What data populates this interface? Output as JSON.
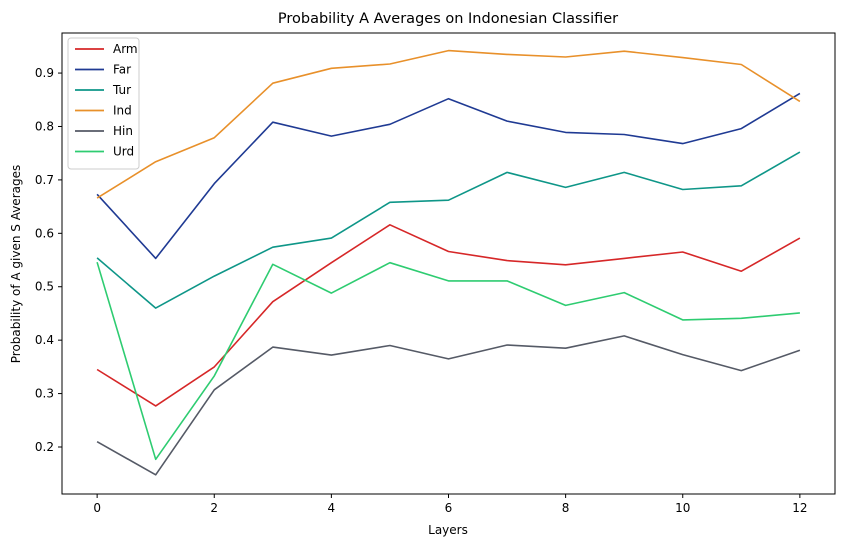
{
  "chart_data": {
    "type": "line",
    "title": "Probability A Averages on Indonesian Classifier",
    "xlabel": "Layers",
    "ylabel": "Probability of A given S Averages",
    "x": [
      0,
      1,
      2,
      3,
      4,
      5,
      6,
      7,
      8,
      9,
      10,
      11,
      12
    ],
    "xticks": [
      0,
      2,
      4,
      6,
      8,
      10,
      12
    ],
    "yticks": [
      0.2,
      0.3,
      0.4,
      0.5,
      0.6,
      0.7,
      0.8,
      0.9
    ],
    "xlim": [
      -0.6,
      12.6
    ],
    "ylim": [
      0.112,
      0.975
    ],
    "grid": false,
    "legend_position": "upper-left",
    "series": [
      {
        "name": "Arm",
        "color": "#d62728",
        "values": [
          0.345,
          0.277,
          0.35,
          0.472,
          0.545,
          0.616,
          0.566,
          0.549,
          0.541,
          0.553,
          0.565,
          0.529,
          0.591
        ]
      },
      {
        "name": "Far",
        "color": "#1f3a93",
        "values": [
          0.673,
          0.553,
          0.693,
          0.808,
          0.782,
          0.804,
          0.852,
          0.81,
          0.789,
          0.785,
          0.768,
          0.796,
          0.862
        ]
      },
      {
        "name": "Tur",
        "color": "#0e9688",
        "values": [
          0.554,
          0.46,
          0.52,
          0.574,
          0.591,
          0.658,
          0.662,
          0.714,
          0.686,
          0.714,
          0.682,
          0.689,
          0.752
        ]
      },
      {
        "name": "Ind",
        "color": "#e8902a",
        "values": [
          0.666,
          0.734,
          0.779,
          0.881,
          0.909,
          0.917,
          0.942,
          0.935,
          0.93,
          0.941,
          0.929,
          0.916,
          0.847
        ]
      },
      {
        "name": "Hin",
        "color": "#555a66",
        "values": [
          0.21,
          0.148,
          0.307,
          0.387,
          0.372,
          0.39,
          0.365,
          0.391,
          0.385,
          0.408,
          0.373,
          0.343,
          0.381
        ]
      },
      {
        "name": "Urd",
        "color": "#2ecc71",
        "values": [
          0.546,
          0.177,
          0.333,
          0.542,
          0.488,
          0.545,
          0.511,
          0.511,
          0.465,
          0.489,
          0.438,
          0.441,
          0.451
        ]
      }
    ]
  }
}
